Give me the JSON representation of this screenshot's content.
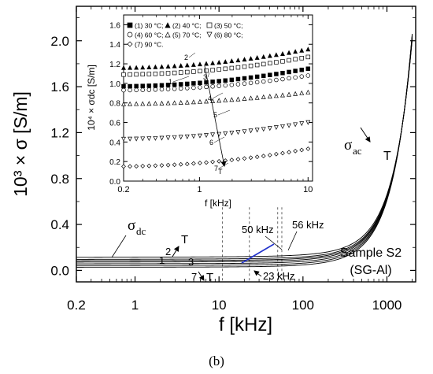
{
  "figure": {
    "panel_label": "(b)"
  },
  "chart_data": [
    {
      "type": "line",
      "role": "main",
      "xscale": "log",
      "xlim": [
        0.2,
        2200
      ],
      "ylim": [
        -0.1,
        2.3
      ],
      "xlabel": "f [kHz]",
      "ylabel": "10³ × σ [S/m]",
      "xticks": [
        0.2,
        1,
        10,
        100,
        1000
      ],
      "xtick_labels": [
        "0.2",
        "1",
        "10",
        "100",
        "1000"
      ],
      "yticks": [
        0.0,
        0.4,
        0.8,
        1.2,
        1.6,
        2.0
      ],
      "ytick_labels": [
        "0.0",
        "0.4",
        "0.8",
        "1.2",
        "1.6",
        "2.0"
      ],
      "plateau_values": [
        0.115,
        0.097,
        0.085,
        0.073,
        0.058,
        0.043,
        0.028
      ],
      "curve_labels": [
        "1",
        "2",
        "3",
        "7"
      ],
      "arrow_labels": [
        "T",
        "T",
        "T"
      ],
      "sigma_dc_label": "σ",
      "sigma_dc_sub": "dc",
      "sigma_ac_label": "σ",
      "sigma_ac_sub": "ac",
      "markers": [
        {
          "x": 11,
          "label": ""
        },
        {
          "x": 23,
          "label": "23 kHz"
        },
        {
          "x": 50,
          "label": "50 kHz"
        },
        {
          "x": 56,
          "label": "56 kHz"
        }
      ],
      "sample_label": [
        "Sample S2",
        "(SG-Al)"
      ]
    },
    {
      "type": "scatter",
      "role": "inset",
      "xscale": "log",
      "xlim": [
        0.2,
        11
      ],
      "ylim": [
        0.0,
        1.7
      ],
      "xlabel": "f [kHz]",
      "ylabel": "10⁴ × σdc [S/m]",
      "xticks": [
        0.2,
        1,
        10
      ],
      "xtick_labels": [
        "0.2",
        "1",
        "10"
      ],
      "yticks": [
        0.0,
        0.2,
        0.4,
        0.6,
        0.8,
        1.0,
        1.2,
        1.4,
        1.6
      ],
      "ytick_labels": [
        "0.0",
        "0.2",
        "0.4",
        "0.6",
        "0.8",
        "1.0",
        "1.2",
        "1.4",
        "1.6"
      ],
      "series": [
        {
          "name": "(1) 30 °C;",
          "marker": "square-filled",
          "y_start": 0.97,
          "y_end": 1.15
        },
        {
          "name": "(2) 40 °C;",
          "marker": "triangle-filled",
          "y_start": 1.16,
          "y_end": 1.35
        },
        {
          "name": "(3) 50 °C;",
          "marker": "square-open",
          "y_start": 1.09,
          "y_end": 1.27
        },
        {
          "name": "(4) 60 °C;",
          "marker": "circle-open",
          "y_start": 0.93,
          "y_end": 1.08
        },
        {
          "name": "(5) 70 °C;",
          "marker": "triangle-open",
          "y_start": 0.79,
          "y_end": 0.91
        },
        {
          "name": "(6) 80 °C;",
          "marker": "triangle-down-open",
          "y_start": 0.43,
          "y_end": 0.6
        },
        {
          "name": "(7) 90 °C.",
          "marker": "diamond-open",
          "y_start": 0.15,
          "y_end": 0.33
        }
      ],
      "point_labels": [
        "1",
        "2",
        "3",
        "4",
        "5",
        "6",
        "7"
      ],
      "arrow_label": "T"
    }
  ]
}
